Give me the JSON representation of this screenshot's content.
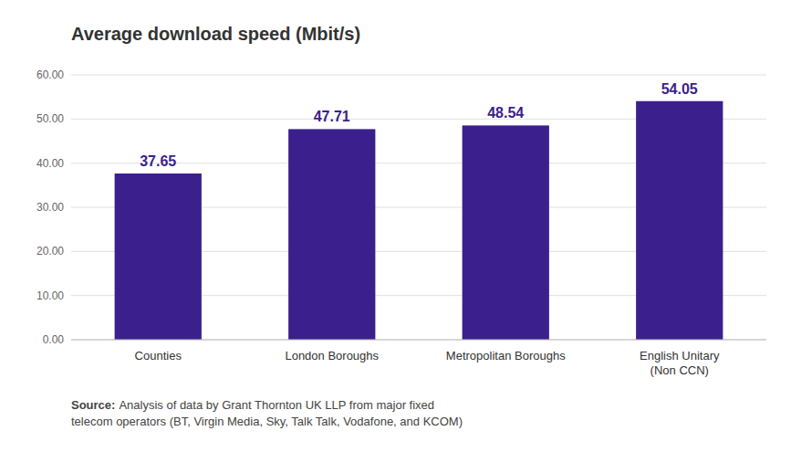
{
  "chart_data": {
    "type": "bar",
    "title": "Average download speed (Mbit/s)",
    "categories": [
      "Counties",
      "London Boroughs",
      "Metropolitan Boroughs",
      "English Unitary\n(Non CCN)"
    ],
    "values": [
      37.65,
      47.71,
      48.54,
      54.05
    ],
    "color": "#3B1F8C",
    "ylim": [
      0,
      60
    ],
    "yticks": [
      {
        "value": 0,
        "label": "0.00"
      },
      {
        "value": 10,
        "label": "10.00"
      },
      {
        "value": 20,
        "label": "20.00"
      },
      {
        "value": 30,
        "label": "30.00"
      },
      {
        "value": 40,
        "label": "40.00"
      },
      {
        "value": 50,
        "label": "50.00"
      },
      {
        "value": 60,
        "label": "60.00"
      }
    ],
    "grid": true,
    "data_labels": true,
    "source_label": "Source:",
    "source": "Analysis of data by Grant Thornton UK LLP from major fixed\ntelecom operators (BT, Virgin Media, Sky, Talk Talk, Vodafone, and KCOM)"
  }
}
